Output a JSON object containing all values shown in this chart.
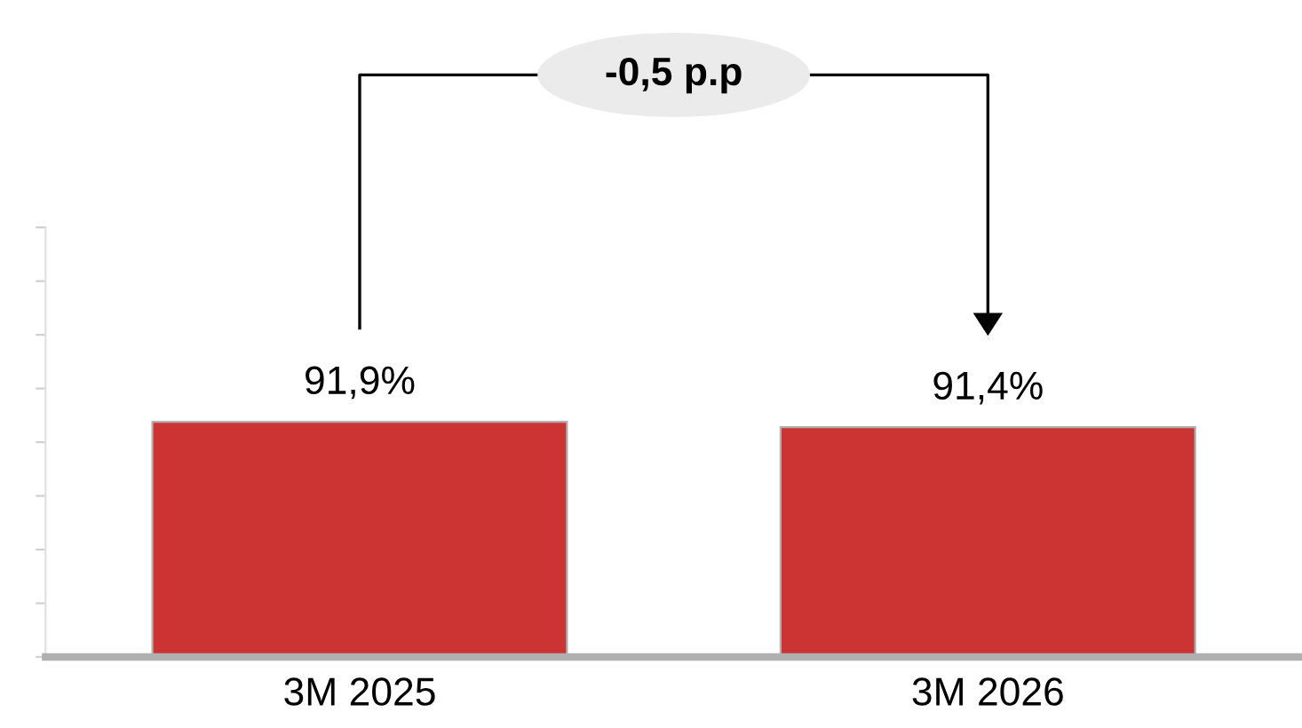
{
  "chart_data": {
    "type": "bar",
    "categories": [
      "3M 2025",
      "3M 2026"
    ],
    "values": [
      91.9,
      91.4
    ],
    "value_labels": [
      "91,9%",
      "91,4%"
    ],
    "color": "#cc3333",
    "ylim": [
      70,
      110
    ],
    "yticks": [
      {
        "value": 70,
        "label": null
      },
      {
        "value": 75,
        "label": null
      },
      {
        "value": 80,
        "label": null
      },
      {
        "value": 85,
        "label": null
      },
      {
        "value": 90,
        "label": null
      },
      {
        "value": 95,
        "label": null
      },
      {
        "value": 100,
        "label": null
      },
      {
        "value": 105,
        "label": null
      },
      {
        "value": 110,
        "label": null
      }
    ],
    "tick_labels": "x",
    "grid": false,
    "legend": false,
    "annotations": [
      "-0,5 p.p"
    ]
  }
}
